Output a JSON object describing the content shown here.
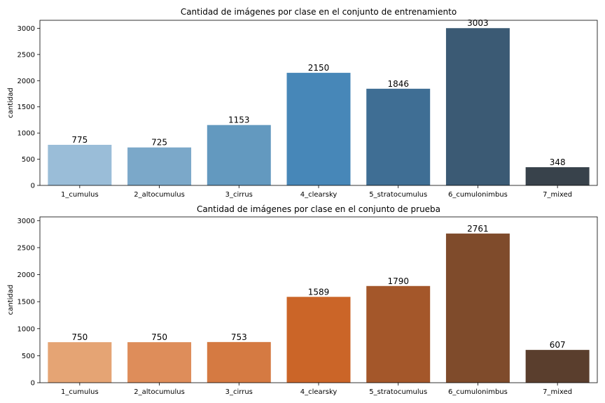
{
  "chart_data": [
    {
      "type": "bar",
      "title": "Cantidad de imágenes por clase en el conjunto de entrenamiento",
      "xlabel": "",
      "ylabel": "cantidad",
      "ylim": [
        0,
        3153
      ],
      "yticks": [
        0,
        500,
        1000,
        1500,
        2000,
        2500,
        3000
      ],
      "categories": [
        "1_cumulus",
        "2_altocumulus",
        "3_cirrus",
        "4_clearsky",
        "5_stratocumulus",
        "6_cumulonimbus",
        "7_mixed"
      ],
      "values": [
        775,
        725,
        1153,
        2150,
        1846,
        3003,
        348
      ],
      "colors": [
        "#9abdd8",
        "#7ba8c9",
        "#6399bf",
        "#4787b8",
        "#3f6e94",
        "#3b5a74",
        "#38424b"
      ],
      "grid": false
    },
    {
      "type": "bar",
      "title": "Cantidad de imágenes por clase en el conjunto de prueba",
      "xlabel": "",
      "ylabel": "cantidad",
      "ylim": [
        0,
        3069
      ],
      "yticks": [
        0,
        500,
        1000,
        1500,
        2000,
        2500,
        3000
      ],
      "categories": [
        "1_cumulus",
        "2_altocumulus",
        "3_cirrus",
        "4_clearsky",
        "5_stratocumulus",
        "6_cumulonimbus",
        "7_mixed"
      ],
      "values": [
        750,
        750,
        753,
        1589,
        1790,
        2761,
        607
      ],
      "colors": [
        "#e5a474",
        "#de8d5a",
        "#d57a42",
        "#cb6528",
        "#a4572a",
        "#7f4b2b",
        "#5a3e2d"
      ],
      "grid": false
    }
  ]
}
